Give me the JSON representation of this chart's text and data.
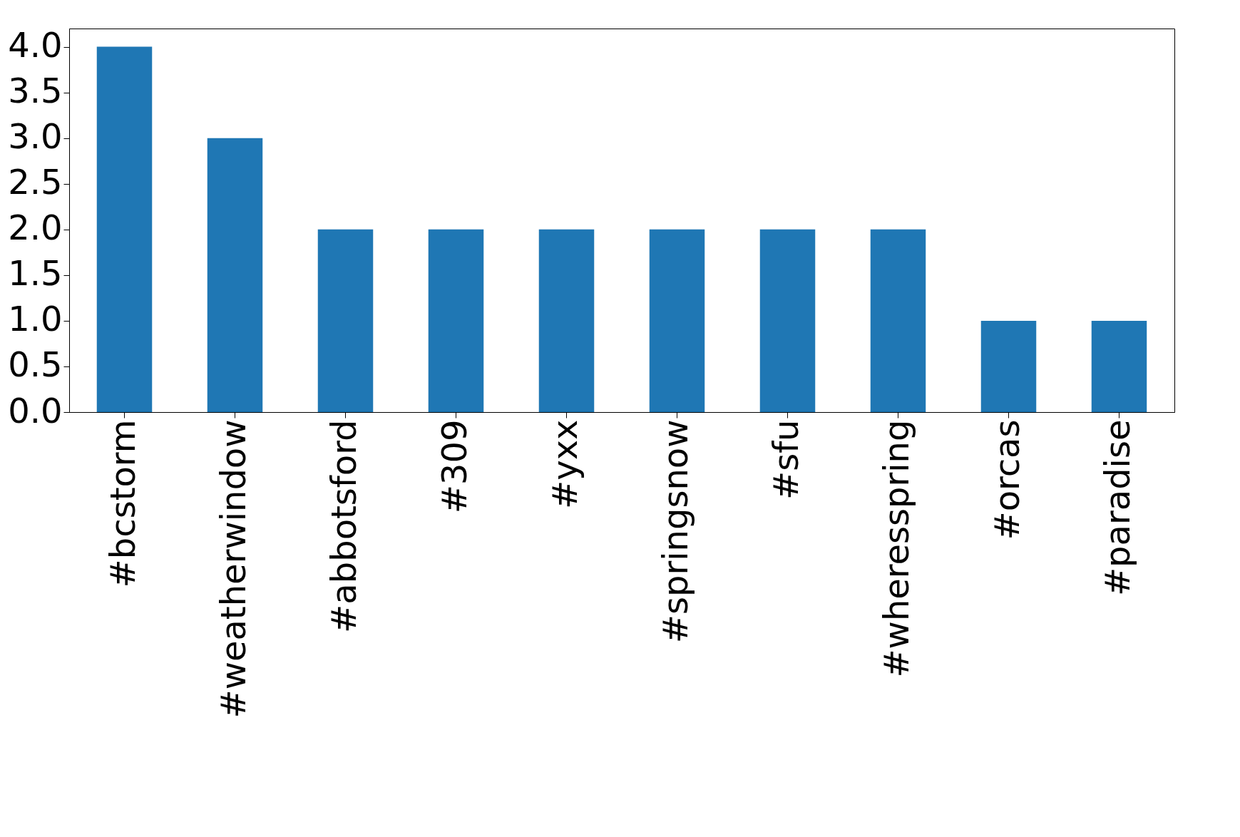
{
  "chart_data": {
    "type": "bar",
    "categories": [
      "#bcstorm",
      "#weatherwindow",
      "#abbotsford",
      "#309",
      "#yxx",
      "#springsnow",
      "#sfu",
      "#wheresspring",
      "#orcas",
      "#paradise"
    ],
    "values": [
      4,
      3,
      2,
      2,
      2,
      2,
      2,
      2,
      1,
      1
    ],
    "color": "#1f77b4",
    "ylim": [
      0,
      4.2
    ],
    "yticks": [
      {
        "value": 0,
        "label": "0.0"
      },
      {
        "value": 0.5,
        "label": "0.5"
      },
      {
        "value": 1,
        "label": "1.0"
      },
      {
        "value": 1.5,
        "label": "1.5"
      },
      {
        "value": 2,
        "label": "2.0"
      },
      {
        "value": 2.5,
        "label": "2.5"
      },
      {
        "value": 3,
        "label": "3.0"
      },
      {
        "value": 3.5,
        "label": "3.5"
      },
      {
        "value": 4,
        "label": "4.0"
      }
    ],
    "grid": false
  }
}
